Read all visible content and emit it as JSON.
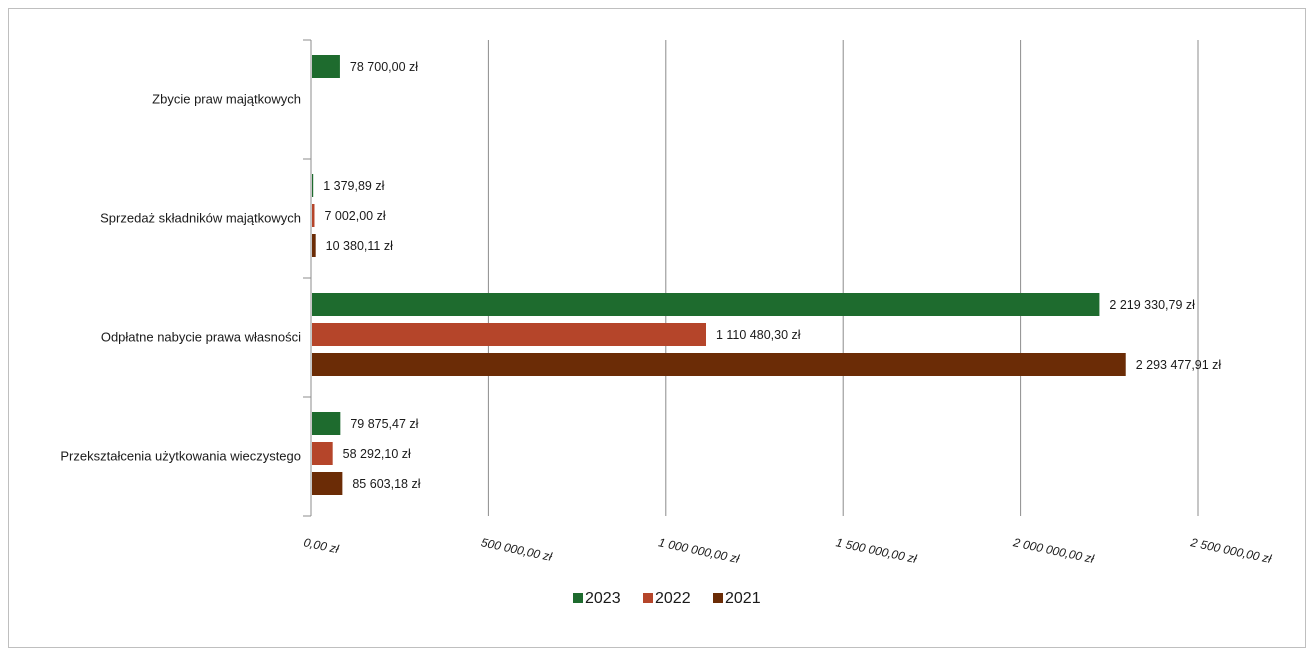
{
  "chart_data": {
    "type": "bar",
    "orientation": "horizontal",
    "categories": [
      "Zbycie praw majątkowych",
      "Sprzedaż składników majątkowych",
      "Odpłatne nabycie prawa własności",
      "Przekształcenia użytkowania wieczystego"
    ],
    "series": [
      {
        "name": "2023",
        "color": "#1e6b2e",
        "values": [
          78700.0,
          1379.89,
          2219330.79,
          79875.47
        ],
        "labels": [
          "78 700,00 zł",
          "1 379,89 zł",
          "2 219 330,79 zł",
          "79 875,47 zł"
        ]
      },
      {
        "name": "2022",
        "color": "#b5452a",
        "values": [
          null,
          7002.0,
          1110480.3,
          58292.1
        ],
        "labels": [
          null,
          "7 002,00 zł",
          "1 110 480,30 zł",
          "58 292,10 zł"
        ]
      },
      {
        "name": "2021",
        "color": "#6b2c06",
        "values": [
          null,
          10380.11,
          2293477.91,
          85603.18
        ],
        "labels": [
          null,
          "10 380,11 zł",
          "2 293 477,91 zł",
          "85 603,18 zł"
        ]
      }
    ],
    "xlim": [
      0,
      2500000
    ],
    "x_ticks": [
      0,
      500000,
      1000000,
      1500000,
      2000000,
      2500000
    ],
    "x_tick_labels": [
      "0,00 zł",
      "500 000,00 zł",
      "1 000 000,00 zł",
      "1 500 000,00 zł",
      "2 000 000,00 zł",
      "2 500 000,00 zł"
    ],
    "grid": "vertical",
    "legend_position": "bottom"
  }
}
